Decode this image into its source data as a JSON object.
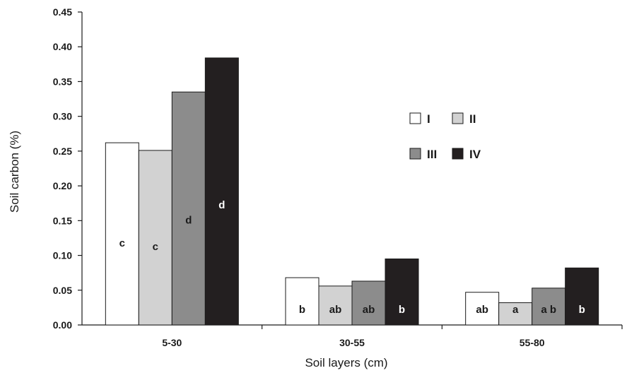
{
  "chart_data": {
    "type": "bar",
    "xlabel": "Soil layers (cm)",
    "ylabel": "Soil carbon (%)",
    "ylim": [
      0,
      0.45
    ],
    "yticks": [
      "0.00",
      "0.05",
      "0.10",
      "0.15",
      "0.20",
      "0.25",
      "0.30",
      "0.35",
      "0.40",
      "0.45"
    ],
    "categories": [
      "5-30",
      "30-55",
      "55-80"
    ],
    "legend_position": "upper-right",
    "grid": false,
    "series": [
      {
        "name": "I",
        "color": "#ffffff",
        "label_color": "#1a1a1a",
        "values": [
          0.262,
          0.068,
          0.047
        ],
        "labels": [
          "c",
          "b",
          "ab"
        ]
      },
      {
        "name": "II",
        "color": "#d2d2d2",
        "label_color": "#1a1a1a",
        "values": [
          0.251,
          0.056,
          0.032
        ],
        "labels": [
          "c",
          "ab",
          "a"
        ]
      },
      {
        "name": "III",
        "color": "#8c8c8c",
        "label_color": "#1a1a1a",
        "values": [
          0.335,
          0.063,
          0.053
        ],
        "labels": [
          "d",
          "ab",
          "a b"
        ]
      },
      {
        "name": "IV",
        "color": "#231f20",
        "label_color": "#ffffff",
        "values": [
          0.384,
          0.095,
          0.082
        ],
        "labels": [
          "d",
          "b",
          "b"
        ]
      }
    ]
  }
}
